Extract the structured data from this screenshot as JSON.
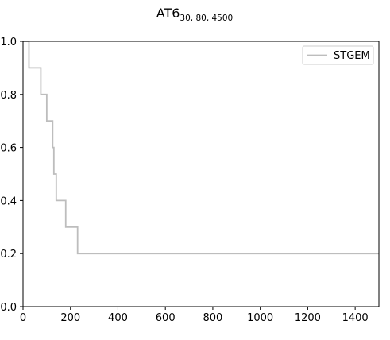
{
  "chart_data": {
    "type": "line",
    "title": {
      "main": "AT6",
      "subscript": "30, 80, 4500"
    },
    "xlabel": "",
    "ylabel": "",
    "xlim": [
      0,
      1500
    ],
    "ylim": [
      0.0,
      1.0
    ],
    "x_ticks": [
      0,
      200,
      400,
      600,
      800,
      1000,
      1200,
      1400
    ],
    "x_tick_labels": [
      "0",
      "200",
      "400",
      "600",
      "800",
      "1000",
      "1200",
      "1400"
    ],
    "y_ticks": [
      0.0,
      0.2,
      0.4,
      0.6,
      0.8,
      1.0
    ],
    "y_tick_labels": [
      "0.0",
      "0.2",
      "0.4",
      "0.6",
      "0.8",
      "1.0"
    ],
    "grid": false,
    "legend_position": "top-right",
    "series": [
      {
        "name": "STGEM",
        "color": "#bdbdbd",
        "step": "post",
        "x": [
          0,
          25,
          75,
          100,
          120,
          125,
          130,
          140,
          180,
          230,
          1500
        ],
        "y": [
          1.0,
          0.9,
          0.8,
          0.7,
          0.7,
          0.6,
          0.5,
          0.4,
          0.3,
          0.2,
          0.2
        ]
      }
    ]
  }
}
